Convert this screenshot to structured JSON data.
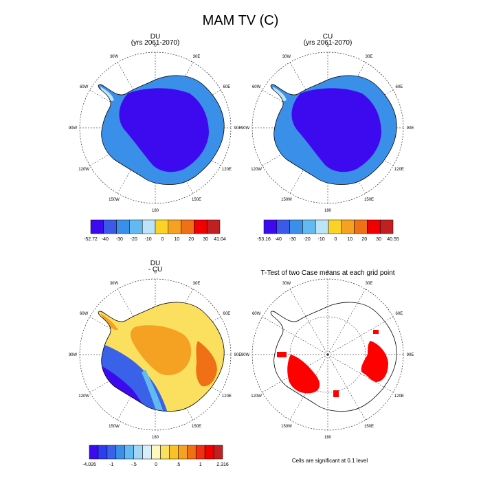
{
  "main_title": "MAM TV (C)",
  "longitude_labels": [
    "0",
    "30E",
    "60E",
    "90E",
    "120E",
    "150E",
    "180",
    "150W",
    "120W",
    "90W",
    "60W",
    "30W"
  ],
  "panels": [
    {
      "id": "du",
      "title_line1": "DU",
      "title_line2": "(yrs 2061-2070)",
      "colorbar": {
        "labels": [
          "-52.72",
          "-40",
          "-30",
          "-20",
          "-10",
          "0",
          "10",
          "20",
          "30",
          "41.04"
        ],
        "colors": [
          "#3d0af0",
          "#3c5ae8",
          "#3a90e8",
          "#62baf0",
          "#bde3f8",
          "#fbd327",
          "#f5a122",
          "#f07015",
          "#f00000",
          "#c02020"
        ]
      }
    },
    {
      "id": "cu",
      "title_line1": "CU",
      "title_line2": "(yrs 2061-2070)",
      "colorbar": {
        "labels": [
          "-53.16",
          "-40",
          "-30",
          "-20",
          "-10",
          "0",
          "10",
          "20",
          "30",
          "40.55"
        ],
        "colors": [
          "#3d0af0",
          "#3c5ae8",
          "#3a90e8",
          "#62baf0",
          "#bde3f8",
          "#fbd327",
          "#f5a122",
          "#f07015",
          "#f00000",
          "#c02020"
        ]
      }
    },
    {
      "id": "diff",
      "title_line1": "DU",
      "title_line2": "- CU",
      "colorbar": {
        "labels": [
          "-4.026",
          "-1",
          "-.5",
          "0",
          ".5",
          "1",
          "2.316"
        ],
        "colors": [
          "#3d0af0",
          "#2c3cf0",
          "#3a62e8",
          "#3a90e8",
          "#62baf0",
          "#a3d6f4",
          "#d8eefb",
          "#fdf8c0",
          "#fbe060",
          "#fbc227",
          "#f5a122",
          "#f07015",
          "#f03010",
          "#f00000",
          "#c02020"
        ]
      }
    },
    {
      "id": "ttest",
      "title_line1": "T-Test of two Case means at each grid point",
      "footnote": "Cells are significant at 0.1 level",
      "colors": {
        "significant": "#ff0000"
      }
    }
  ]
}
